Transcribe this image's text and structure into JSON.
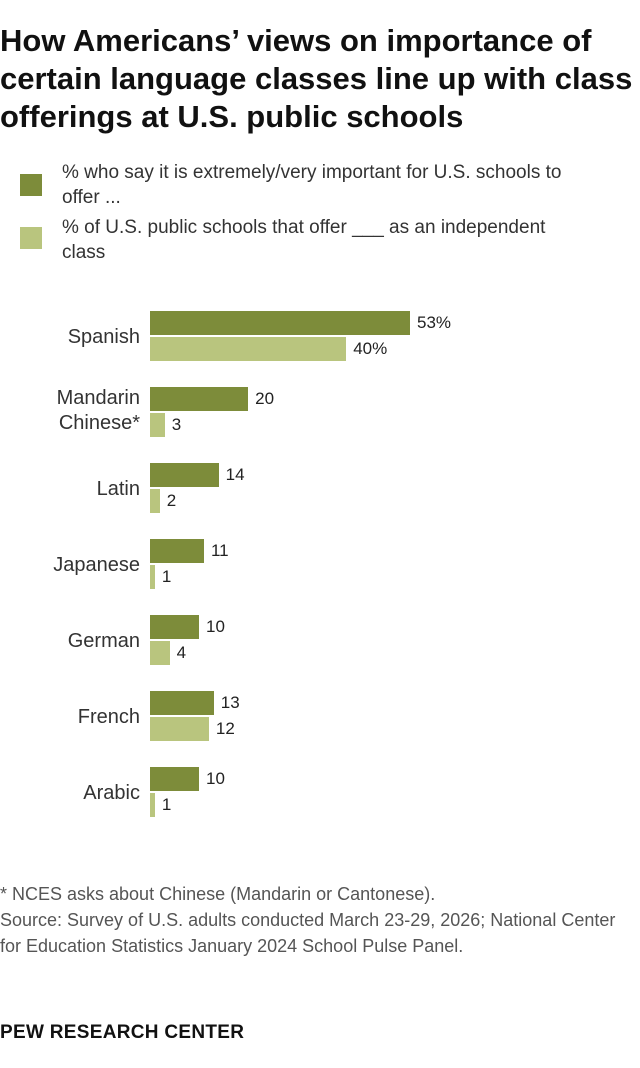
{
  "title": "How Americans’ views on importance of certain language classes line up with class offerings at U.S. public schools",
  "colors": {
    "important": "#7d8c3a",
    "offer": "#b9c57e"
  },
  "legend": [
    {
      "label": "% who say it is extremely/very important for U.S. schools to offer ..."
    },
    {
      "label": "% of U.S. public schools that offer ___ as an independent class"
    }
  ],
  "chart_data": {
    "type": "bar",
    "orientation": "horizontal",
    "categories": [
      "Spanish",
      "Mandarin Chinese*",
      "Latin",
      "Japanese",
      "German",
      "French",
      "Arabic"
    ],
    "series": [
      {
        "name": "% who say it is extremely/very important for U.S. schools to offer ...",
        "values": [
          53,
          20,
          14,
          11,
          10,
          13,
          10
        ]
      },
      {
        "name": "% of U.S. public schools that offer ___ as an independent class",
        "values": [
          40,
          3,
          2,
          1,
          4,
          12,
          1
        ]
      }
    ],
    "value_labels": [
      [
        "53%",
        "20",
        "14",
        "11",
        "10",
        "13",
        "10"
      ],
      [
        "40%",
        "3",
        "2",
        "1",
        "4",
        "12",
        "1"
      ]
    ]
  },
  "notes": {
    "footnote": "* NCES asks about Chinese (Mandarin or Cantonese).",
    "source": "Source: Survey of U.S. adults conducted March 23-29, 2026; National Center for Education Statistics January 2024 School Pulse Panel."
  },
  "brand": "PEW RESEARCH CENTER"
}
